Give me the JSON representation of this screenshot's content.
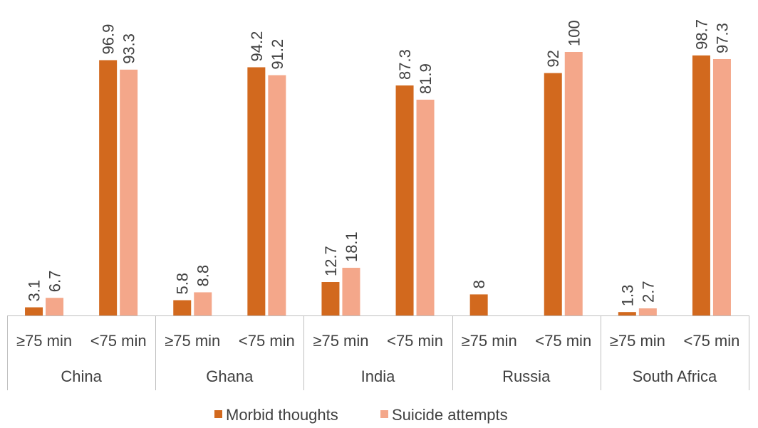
{
  "chart_data": {
    "type": "bar",
    "title": "",
    "xlabel": "",
    "ylabel": "",
    "ylim": [
      0,
      100
    ],
    "grid": false,
    "legend_position": "bottom",
    "groups": [
      "China",
      "Ghana",
      "India",
      "Russia",
      "South Africa"
    ],
    "subcategories": [
      "≥75 min",
      "<75 min"
    ],
    "series": [
      {
        "name": "Morbid thoughts",
        "color": "#D2691E",
        "values": [
          [
            3.1,
            96.9
          ],
          [
            5.8,
            94.2
          ],
          [
            12.7,
            87.3
          ],
          [
            8,
            92
          ],
          [
            1.3,
            98.7
          ]
        ]
      },
      {
        "name": "Suicide attempts",
        "color": "#F4A78A",
        "values": [
          [
            6.7,
            93.3
          ],
          [
            8.8,
            91.2
          ],
          [
            18.1,
            81.9
          ],
          [
            null,
            100
          ],
          [
            2.7,
            97.3
          ]
        ]
      }
    ]
  }
}
